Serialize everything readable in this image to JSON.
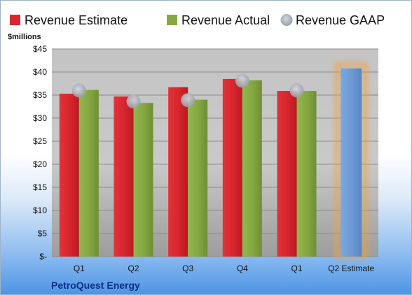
{
  "chart_data": {
    "type": "bar",
    "ylabel": "$millions",
    "categories": [
      "Q1",
      "Q2",
      "Q3",
      "Q4",
      "Q1",
      "Q2 Estimate"
    ],
    "ylim": [
      0,
      45
    ],
    "yticks": [
      {
        "value": 0,
        "label": "$-"
      },
      {
        "value": 5,
        "label": "$5"
      },
      {
        "value": 10,
        "label": "$10"
      },
      {
        "value": 15,
        "label": "$15"
      },
      {
        "value": 20,
        "label": "$20"
      },
      {
        "value": 25,
        "label": "$25"
      },
      {
        "value": 30,
        "label": "$30"
      },
      {
        "value": 35,
        "label": "$35"
      },
      {
        "value": 40,
        "label": "$40"
      },
      {
        "value": 45,
        "label": "$45"
      }
    ],
    "series": [
      {
        "name": "Revenue Estimate",
        "kind": "bar",
        "color": "#d9262e",
        "values": [
          35.3,
          34.7,
          36.7,
          38.5,
          35.9,
          null
        ]
      },
      {
        "name": "Revenue Actual",
        "kind": "bar",
        "color": "#86a843",
        "values": [
          36.1,
          33.3,
          34.0,
          38.2,
          35.9,
          null
        ]
      },
      {
        "name": "Revenue GAAP",
        "kind": "marker",
        "color": "#b8bcc4",
        "values": [
          36.0,
          33.6,
          33.9,
          38.1,
          36.0,
          null
        ]
      }
    ],
    "estimate_bar": {
      "category": "Q2 Estimate",
      "value": 40.8,
      "color": "#6e9bd6",
      "glow": "#f0a040"
    },
    "legend_position": "top",
    "grid": true,
    "footer": "PetroQuest Energy"
  }
}
